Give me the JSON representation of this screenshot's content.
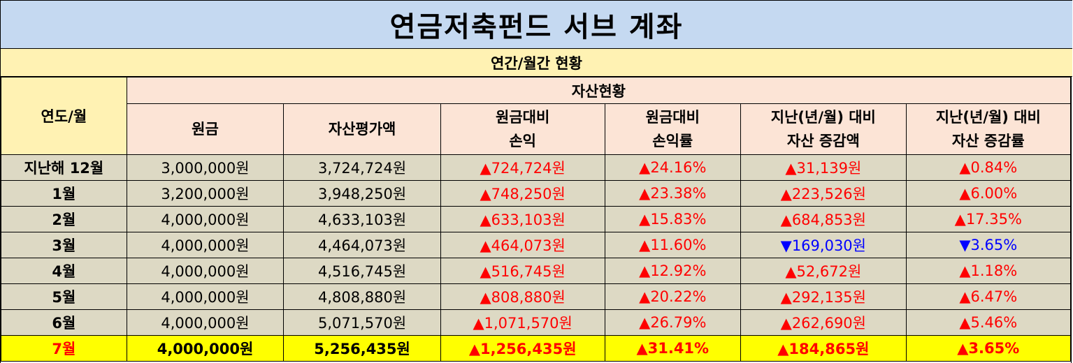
{
  "title": "연금저축펀드 서브 계좌",
  "subtitle": "연간/월간 현황",
  "header": {
    "year_month": "연도/월",
    "asset_group": "자산현황",
    "columns": [
      {
        "line1": "원금",
        "line2": ""
      },
      {
        "line1": "자산평가액",
        "line2": ""
      },
      {
        "line1": "원금대비",
        "line2": "손익"
      },
      {
        "line1": "원금대비",
        "line2": "손익률"
      },
      {
        "line1": "지난(년/월) 대비",
        "line2": "자산 증감액"
      },
      {
        "line1": "지난(년/월) 대비",
        "line2": "자산 증감률"
      }
    ]
  },
  "rows": [
    {
      "label": "지난해 12월",
      "principal": "3,000,000원",
      "value": "3,724,724원",
      "pl": "▲724,724원",
      "pl_rate": "▲24.16%",
      "chg": "▲31,139원",
      "chg_rate": "▲0.84%",
      "chg_dir": "up"
    },
    {
      "label": "1월",
      "principal": "3,200,000원",
      "value": "3,948,250원",
      "pl": "▲748,250원",
      "pl_rate": "▲23.38%",
      "chg": "▲223,526원",
      "chg_rate": "▲6.00%",
      "chg_dir": "up"
    },
    {
      "label": "2월",
      "principal": "4,000,000원",
      "value": "4,633,103원",
      "pl": "▲633,103원",
      "pl_rate": "▲15.83%",
      "chg": "▲684,853원",
      "chg_rate": "▲17.35%",
      "chg_dir": "up"
    },
    {
      "label": "3월",
      "principal": "4,000,000원",
      "value": "4,464,073원",
      "pl": "▲464,073원",
      "pl_rate": "▲11.60%",
      "chg": "▼169,030원",
      "chg_rate": "▼3.65%",
      "chg_dir": "down"
    },
    {
      "label": "4월",
      "principal": "4,000,000원",
      "value": "4,516,745원",
      "pl": "▲516,745원",
      "pl_rate": "▲12.92%",
      "chg": "▲52,672원",
      "chg_rate": "▲1.18%",
      "chg_dir": "up"
    },
    {
      "label": "5월",
      "principal": "4,000,000원",
      "value": "4,808,880원",
      "pl": "▲808,880원",
      "pl_rate": "▲20.22%",
      "chg": "▲292,135원",
      "chg_rate": "▲6.47%",
      "chg_dir": "up"
    },
    {
      "label": "6월",
      "principal": "4,000,000원",
      "value": "5,071,570원",
      "pl": "▲1,071,570원",
      "pl_rate": "▲26.79%",
      "chg": "▲262,690원",
      "chg_rate": "▲5.46%",
      "chg_dir": "up"
    },
    {
      "label": "7월",
      "principal": "4,000,000원",
      "value": "5,256,435원",
      "pl": "▲1,256,435원",
      "pl_rate": "▲31.41%",
      "chg": "▲184,865원",
      "chg_rate": "▲3.65%",
      "chg_dir": "up",
      "highlight": true
    }
  ],
  "colors": {
    "title_bg": "#c5d9f1",
    "subtitle_bg": "#fff2b3",
    "header_bg": "#fce4d6",
    "row_bg": "#ddd9c4",
    "highlight_bg": "#ffff00",
    "up": "#ff0000",
    "down": "#0000ff"
  }
}
